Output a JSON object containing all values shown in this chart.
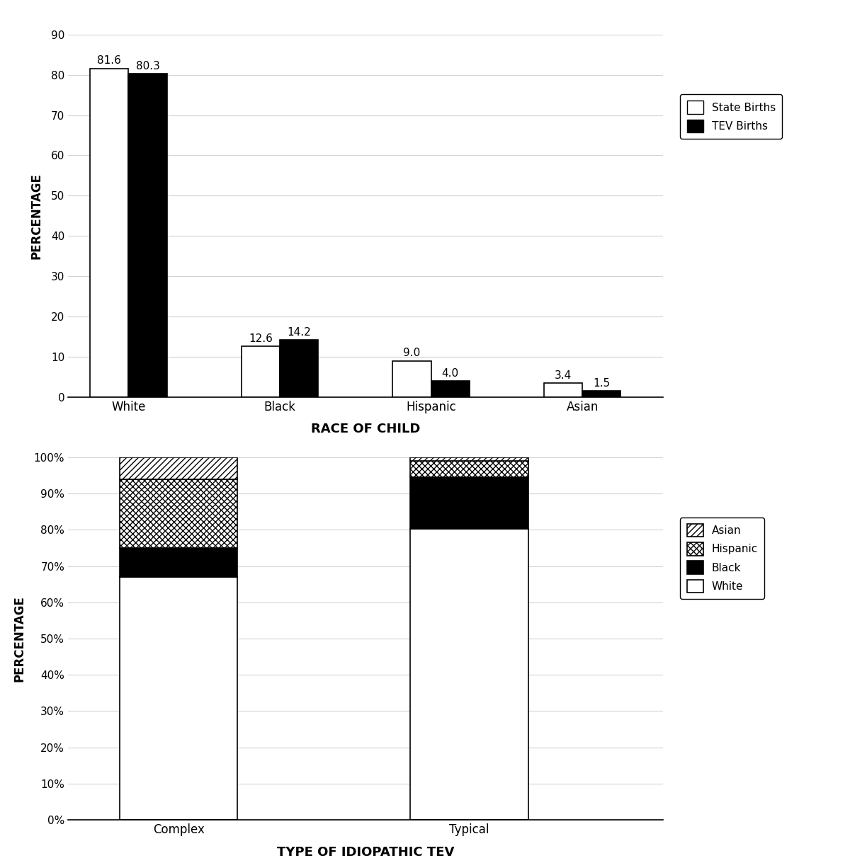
{
  "top_chart": {
    "categories": [
      "White",
      "Black",
      "Hispanic",
      "Asian"
    ],
    "state_births": [
      81.6,
      12.6,
      9.0,
      3.4
    ],
    "tev_births": [
      80.3,
      14.2,
      4.0,
      1.5
    ],
    "state_color": "#ffffff",
    "tev_color": "#000000",
    "ylabel": "PERCENTAGE",
    "xlabel": "RACE OF CHILD",
    "ylim": [
      0,
      90
    ],
    "yticks": [
      0,
      10,
      20,
      30,
      40,
      50,
      60,
      70,
      80,
      90
    ],
    "legend_labels": [
      "State Births",
      "TEV Births"
    ]
  },
  "bottom_chart": {
    "categories": [
      "Complex",
      "Typical"
    ],
    "white_pct": [
      67.0,
      80.3
    ],
    "black_pct": [
      8.0,
      14.2
    ],
    "hispanic_pct": [
      19.0,
      4.5
    ],
    "asian_pct": [
      6.0,
      1.0
    ],
    "ylabel": "PERCENTAGE",
    "xlabel": "TYPE OF IDIOPATHIC TEV",
    "legend_labels": [
      "Asian",
      "Hispanic",
      "Black",
      "White"
    ]
  }
}
